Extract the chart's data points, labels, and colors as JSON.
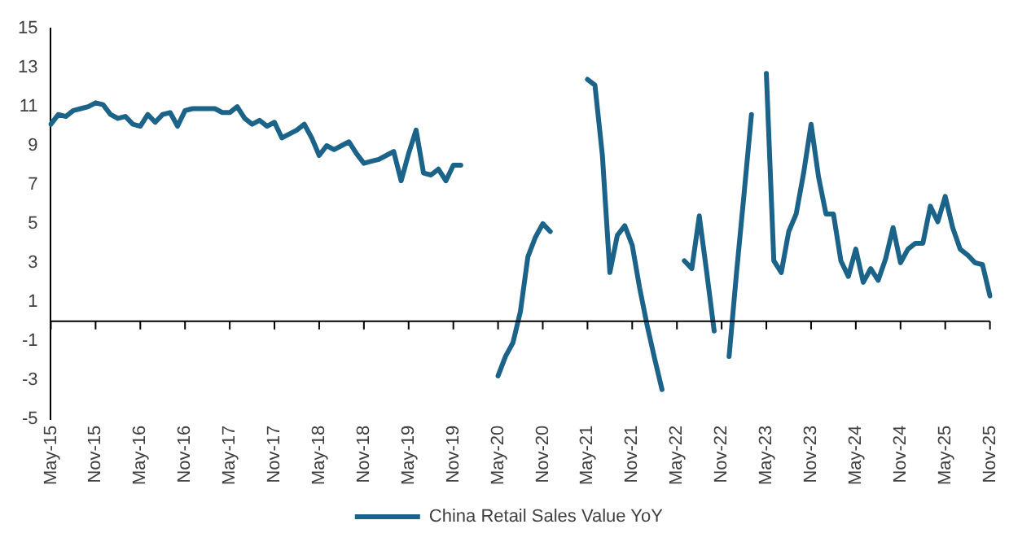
{
  "chart_data": {
    "type": "line",
    "categories": [
      "May-15",
      null,
      null,
      null,
      null,
      null,
      "Nov-15",
      null,
      null,
      null,
      null,
      null,
      "May-16",
      null,
      null,
      null,
      null,
      null,
      "Nov-16",
      null,
      null,
      null,
      null,
      null,
      "May-17",
      null,
      null,
      null,
      null,
      null,
      "Nov-17",
      null,
      null,
      null,
      null,
      null,
      "May-18",
      null,
      null,
      null,
      null,
      null,
      "Nov-18",
      null,
      null,
      null,
      null,
      null,
      "May-19",
      null,
      null,
      null,
      null,
      null,
      "Nov-19",
      null,
      null,
      null,
      null,
      null,
      "May-20",
      null,
      null,
      null,
      null,
      null,
      "Nov-20",
      null,
      null,
      null,
      null,
      null,
      "May-21",
      null,
      null,
      null,
      null,
      null,
      "Nov-21",
      null,
      null,
      null,
      null,
      null,
      "May-22",
      null,
      null,
      null,
      null,
      null,
      "Nov-22",
      null,
      null,
      null,
      null,
      null,
      "May-23",
      null,
      null,
      null,
      null,
      null,
      "Nov-23",
      null,
      null,
      null,
      null,
      null,
      "May-24",
      null,
      null,
      null,
      null,
      null,
      "Nov-24",
      null,
      null,
      null,
      null,
      null,
      "May-25",
      null,
      null,
      null,
      null,
      null,
      "Nov-25"
    ],
    "series": [
      {
        "name": "China Retail Sales Value YoY",
        "color": "#1b6388",
        "values": [
          10.1,
          10.6,
          10.5,
          10.8,
          10.9,
          11.0,
          11.2,
          11.1,
          10.6,
          10.4,
          10.5,
          10.1,
          10.0,
          10.6,
          10.2,
          10.6,
          10.7,
          10.0,
          10.8,
          10.9,
          10.9,
          10.9,
          10.9,
          10.7,
          10.7,
          11.0,
          10.4,
          10.1,
          10.3,
          10.0,
          10.2,
          9.4,
          9.6,
          9.8,
          10.1,
          9.4,
          8.5,
          9.0,
          8.8,
          9.0,
          9.2,
          8.6,
          8.1,
          8.2,
          8.3,
          8.5,
          8.7,
          7.2,
          8.6,
          9.8,
          7.6,
          7.5,
          7.8,
          7.2,
          8.0,
          8.0,
          null,
          null,
          null,
          null,
          -2.8,
          -1.8,
          -1.1,
          0.5,
          3.3,
          4.3,
          5.0,
          4.6,
          null,
          null,
          null,
          null,
          12.4,
          12.1,
          8.5,
          2.5,
          4.4,
          4.9,
          3.9,
          1.7,
          -0.2,
          -1.9,
          -3.5,
          null,
          null,
          3.1,
          2.7,
          5.4,
          2.5,
          -0.5,
          null,
          -1.8,
          2.5,
          6.5,
          10.6,
          null,
          12.7,
          3.1,
          2.5,
          4.6,
          5.5,
          7.6,
          10.1,
          7.4,
          5.5,
          5.5,
          3.1,
          2.3,
          3.7,
          2.0,
          2.7,
          2.1,
          3.2,
          4.8,
          3.0,
          3.7,
          4.0,
          4.0,
          5.9,
          5.1,
          6.4,
          4.8,
          3.7,
          3.4,
          3.0,
          2.9,
          1.3
        ]
      }
    ],
    "ylim": [
      -5,
      15
    ],
    "yticks": [
      -5,
      -3,
      -1,
      1,
      3,
      5,
      7,
      9,
      11,
      13,
      15
    ],
    "ref_lines": [
      {
        "axis": "y",
        "value": 0,
        "color": "#000000"
      }
    ],
    "grid": false,
    "legend": "bottom",
    "marker": "none",
    "line_style": "solid"
  }
}
